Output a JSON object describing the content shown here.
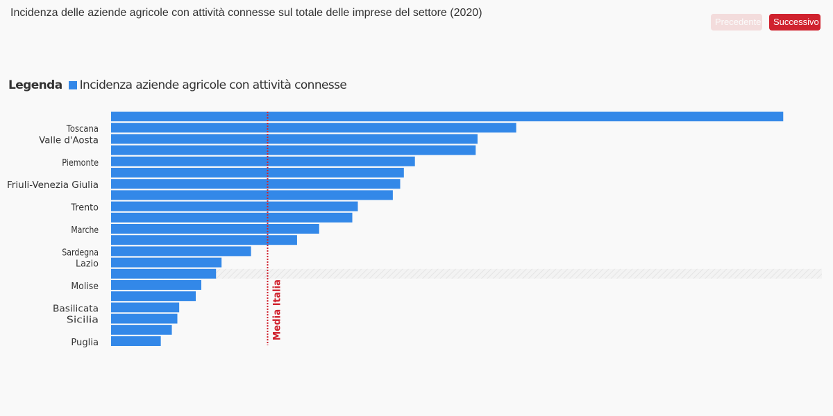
{
  "header": {
    "title": "Incidenza delle aziende agricole con attività connesse sul totale delle imprese del settore (2020)",
    "prev_label": "Precedente",
    "next_label": "Successivo"
  },
  "legend": {
    "title": "Legenda",
    "items": [
      {
        "label": "Incidenza aziende agricole con attività connesse",
        "color": "#3388e8"
      }
    ]
  },
  "colors": {
    "bar": "#3388e8",
    "reference_line": "#d0222e",
    "next_button": "#d0222e",
    "prev_button": "#f3dcdc"
  },
  "chart_data": {
    "type": "bar",
    "orientation": "horizontal",
    "categories": [
      "",
      "Toscana",
      "Valle d'Aosta",
      "",
      "Piemonte",
      "",
      "Friuli-Venezia Giulia",
      "",
      "Trento",
      "",
      "Marche",
      "",
      "Sardegna",
      "Lazio",
      "",
      "Molise",
      "",
      "Basilicata",
      "Sicilia",
      "",
      "Puglia"
    ],
    "series": [
      {
        "values": [
          36.5,
          22.0,
          19.9,
          19.8,
          16.5,
          15.9,
          15.7,
          15.3,
          13.4,
          13.1,
          11.3,
          10.1,
          7.6,
          6.0,
          5.7,
          4.9,
          4.6,
          3.7,
          3.6,
          3.3,
          2.7
        ]
      }
    ],
    "highlighted_category_index": 14,
    "reference_line": {
      "label": "Media Italia",
      "value": 8.5
    },
    "xlim": [
      0,
      38.6
    ],
    "grid": false
  }
}
